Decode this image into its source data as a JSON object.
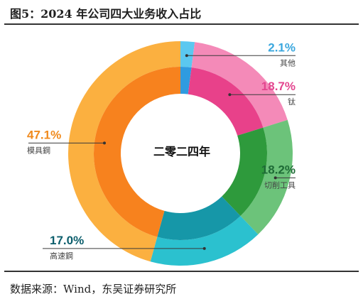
{
  "figure_title": "图5：2024 年公司四大业务收入占比",
  "source": "数据来源：Wind，东吴证券研究所",
  "chart_data": {
    "type": "pie",
    "subtype": "donut",
    "title": "图5：2024 年公司四大业务收入占比",
    "center_label": "二零二四年",
    "unit": "%",
    "slices": [
      {
        "name": "其他",
        "value": 2.1,
        "label": "2.1%",
        "outer_color": "#5bc8f0",
        "inner_color": "#2f9be0",
        "label_color": "#3aa7de",
        "label_side": "right"
      },
      {
        "name": "钛",
        "value": 18.7,
        "label": "18.7%",
        "outer_color": "#f48ab8",
        "inner_color": "#e8418a",
        "label_color": "#e3468f",
        "label_side": "right"
      },
      {
        "name": "切削工具",
        "value": 18.2,
        "label": "18.2%",
        "outer_color": "#6cc37a",
        "inner_color": "#2e9a3c",
        "label_color": "#1e6b36",
        "label_side": "right"
      },
      {
        "name": "高速鋼",
        "value": 17.0,
        "label": "17.0%",
        "outer_color": "#2bc1cf",
        "inner_color": "#1697a8",
        "label_color": "#0c5e6c",
        "label_side": "left"
      },
      {
        "name": "模具鋼",
        "value": 47.1,
        "label": "47.1%",
        "outer_color": "#fbb040",
        "inner_color": "#f7821e",
        "label_color": "#f08a1c",
        "label_side": "left"
      }
    ]
  }
}
